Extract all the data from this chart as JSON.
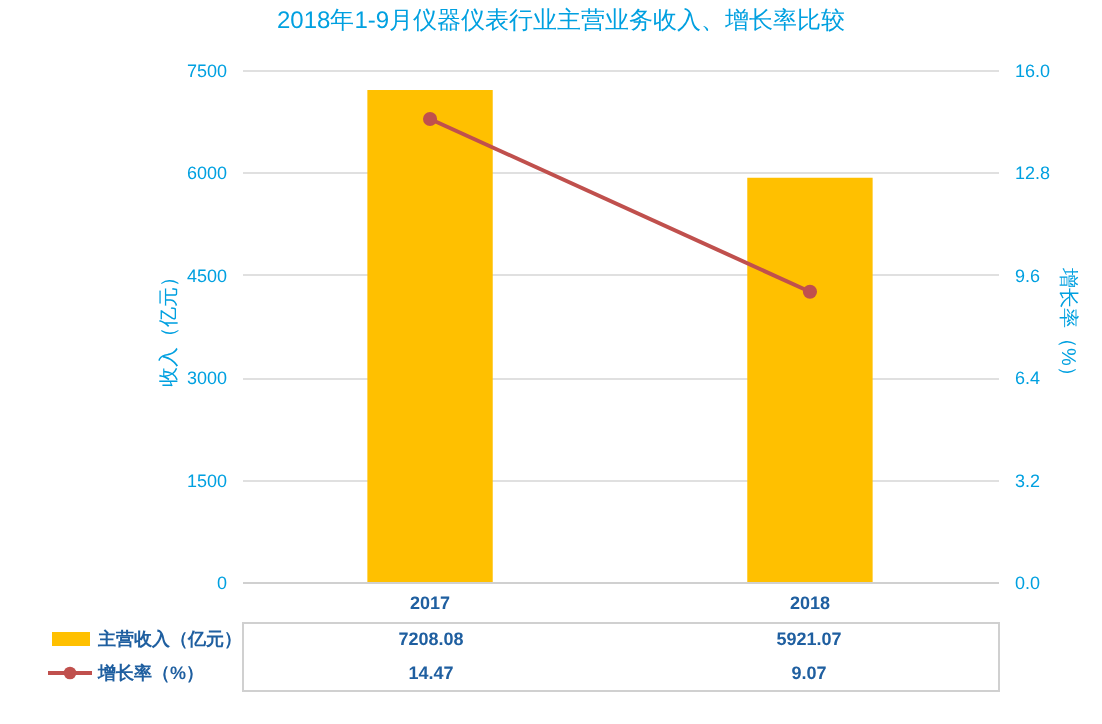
{
  "chart_data": {
    "type": "bar",
    "title": "2018年1-9月仪器仪表行业主营业务收入、增长率比较",
    "categories": [
      "2017",
      "2018"
    ],
    "series": [
      {
        "name": "主营收入（亿元）",
        "color": "#ffc000",
        "values": [
          7208.08,
          5921.07
        ]
      },
      {
        "name": "增长率（%）",
        "type": "line",
        "axis": "y2",
        "color": "#c0504d",
        "values": [
          14.47,
          9.07
        ]
      }
    ],
    "ylabel": "收入（亿元）",
    "y2label": "增长率（%）",
    "ylim": [
      0,
      7500
    ],
    "yticks": [
      0,
      1500,
      3000,
      4500,
      6000,
      7500
    ],
    "y2lim": [
      0,
      16
    ],
    "y2ticks": [
      {
        "value": 0,
        "label": "0.0"
      },
      {
        "value": 3.2,
        "label": "3.2"
      },
      {
        "value": 6.4,
        "label": "6.4"
      },
      {
        "value": 9.6,
        "label": "9.6"
      },
      {
        "value": 12.8,
        "label": "12.8"
      },
      {
        "value": 16,
        "label": "16.0"
      }
    ],
    "grid": "y",
    "marker": "circle",
    "legend": "bottom",
    "data_labels": true
  }
}
